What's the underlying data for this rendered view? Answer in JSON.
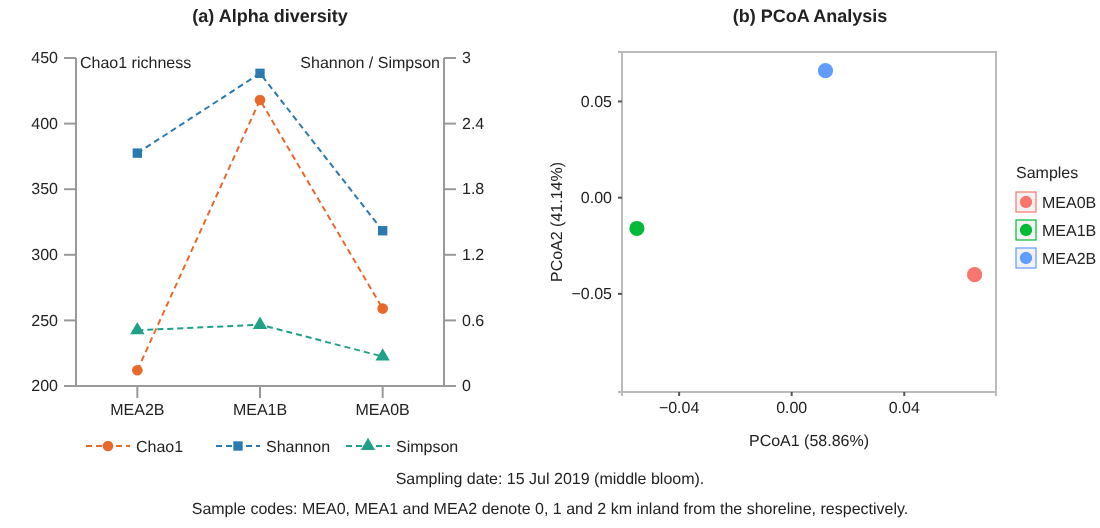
{
  "chart_data": [
    {
      "type": "line",
      "title": "(a) Alpha diversity",
      "ylabel": "Chao1 richness",
      "y2label": "Shannon / Simpson",
      "categories": [
        "MEA2B",
        "MEA1B",
        "MEA0B"
      ],
      "ylim": [
        200,
        450
      ],
      "yticks": [
        200,
        250,
        300,
        350,
        400,
        450
      ],
      "y2lim": [
        0,
        3
      ],
      "y2ticks": [
        0,
        0.6,
        1.2,
        1.8,
        2.4,
        3
      ],
      "grid": false,
      "legend": "bottom",
      "line_style": "dashed",
      "series": [
        {
          "name": "Chao1",
          "color": "#e8692a",
          "marker": "circle",
          "values": [
            212,
            418,
            259
          ]
        },
        {
          "name": "Shannon",
          "color": "#2a7ab0",
          "marker": "square",
          "axis": "y2",
          "values": [
            2.13,
            2.86,
            1.42
          ]
        },
        {
          "name": "Simpson",
          "color": "#1fa187",
          "marker": "triangle",
          "axis": "y2",
          "values": [
            0.51,
            0.56,
            0.27
          ]
        }
      ],
      "annotations": [
        "Sampling date: 15 Jul 2019 (middle bloom).",
        "Sample codes: MEA0, MEA1 and MEA2 denote 0, 1 and 2 km inland from the shoreline, respectively."
      ]
    },
    {
      "type": "scatter",
      "title": "(b) PCoA Analysis",
      "xlabel": "PCoA1 (58.86%)",
      "ylabel": "PCoA2 (41.14%)",
      "legend_title": "Samples",
      "legend": "right",
      "grid": false,
      "marker": "circle",
      "xlim": [
        -0.0603,
        0.0726
      ],
      "xticks": [
        {
          "value": -0.04,
          "label": "−0.04"
        },
        {
          "value": 0,
          "label": "0.00"
        },
        {
          "value": 0.04,
          "label": "0.04"
        }
      ],
      "ylim": [
        -0.101,
        0.0757
      ],
      "yticks": [
        {
          "value": -0.05,
          "label": "−0.05"
        },
        {
          "value": 0,
          "label": "0.00"
        },
        {
          "value": 0.05,
          "label": "0.05"
        }
      ],
      "series": [
        {
          "name": "MEA0B",
          "color": "#f8766d",
          "x": [
            0.065
          ],
          "values": [
            -0.04
          ]
        },
        {
          "name": "MEA1B",
          "color": "#00ba38",
          "x": [
            -0.055
          ],
          "values": [
            -0.016
          ]
        },
        {
          "name": "MEA2B",
          "color": "#619cff",
          "x": [
            0.012
          ],
          "values": [
            0.066
          ]
        }
      ]
    }
  ]
}
